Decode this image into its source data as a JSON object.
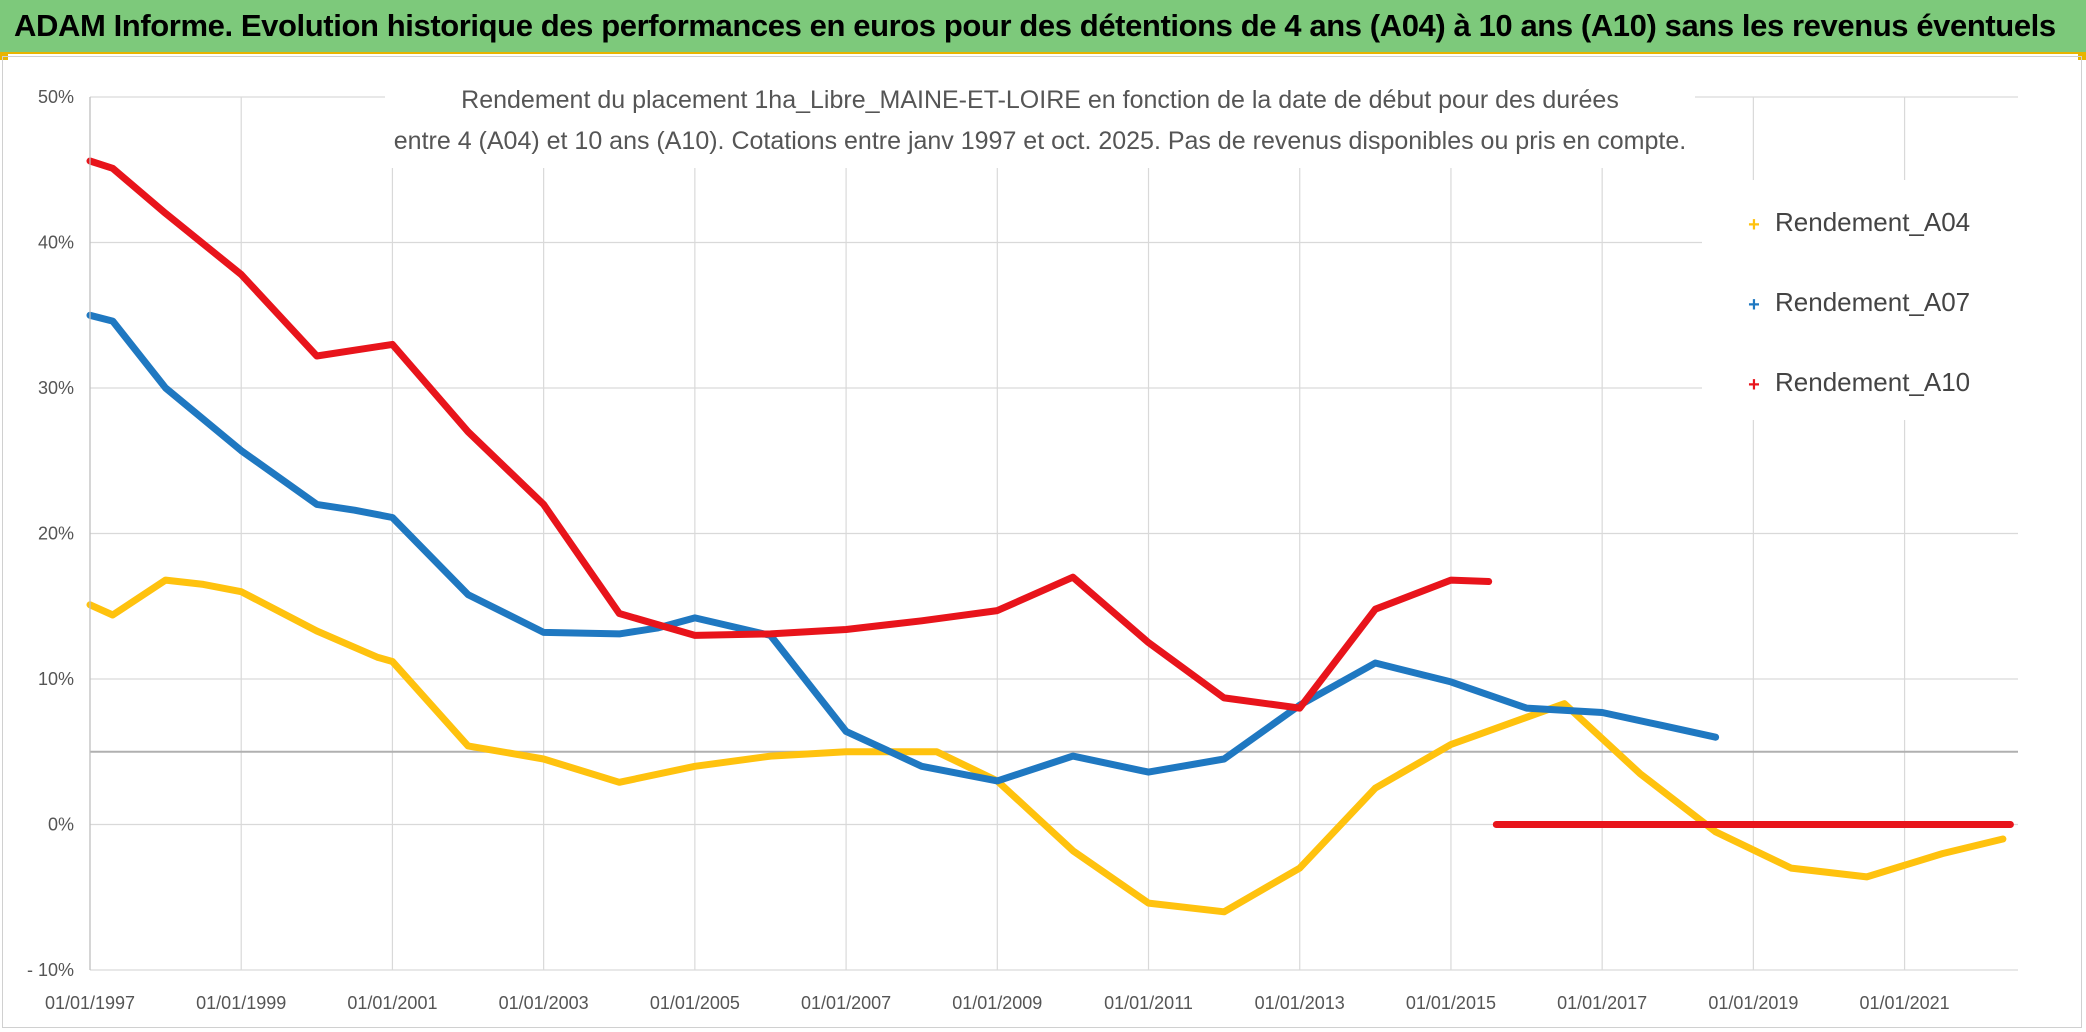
{
  "banner": {
    "title": "ADAM Informe. Evolution historique des performances en euros pour des détentions de 4 ans (A04) à 10 ans (A10) sans les revenus éventuels"
  },
  "colors": {
    "banner_bg": "#7dc97b",
    "accent_border": "#e8b400",
    "A04": "#ffc20e",
    "A07": "#1f78c1",
    "A10": "#e8141b",
    "grid": "#d9d9d9",
    "reference_line": "#b0b0b0"
  },
  "chart_data": {
    "type": "line",
    "title_lines": [
      "Rendement du placement 1ha_Libre_MAINE-ET-LOIRE en fonction de la date de début pour des durées",
      "entre 4 (A04) et 10 ans (A10). Cotations entre janv 1997 et oct. 2025. Pas de revenus disponibles ou pris en compte."
    ],
    "xlabel": "",
    "ylabel": "",
    "xlim": [
      1997.0,
      2022.5
    ],
    "ylim": [
      -10,
      50
    ],
    "grid": true,
    "legend_position": "top-right",
    "x_ticks": [
      {
        "x": 1997,
        "label": "01/01/1997"
      },
      {
        "x": 1999,
        "label": "01/01/1999"
      },
      {
        "x": 2001,
        "label": "01/01/2001"
      },
      {
        "x": 2003,
        "label": "01/01/2003"
      },
      {
        "x": 2005,
        "label": "01/01/2005"
      },
      {
        "x": 2007,
        "label": "01/01/2007"
      },
      {
        "x": 2009,
        "label": "01/01/2009"
      },
      {
        "x": 2011,
        "label": "01/01/2011"
      },
      {
        "x": 2013,
        "label": "01/01/2013"
      },
      {
        "x": 2015,
        "label": "01/01/2015"
      },
      {
        "x": 2017,
        "label": "01/01/2017"
      },
      {
        "x": 2019,
        "label": "01/01/2019"
      },
      {
        "x": 2021,
        "label": "01/01/2021"
      }
    ],
    "y_ticks": [
      {
        "y": 50,
        "label": "50%"
      },
      {
        "y": 40,
        "label": "40%"
      },
      {
        "y": 30,
        "label": "30%"
      },
      {
        "y": 20,
        "label": "20%"
      },
      {
        "y": 10,
        "label": "10%"
      },
      {
        "y": 0,
        "label": "0%"
      },
      {
        "y": -10,
        "label": "- 10%"
      }
    ],
    "x_gridlines": [
      1997,
      1999,
      2001,
      2003,
      2005,
      2007,
      2009,
      2011,
      2013,
      2015,
      2017,
      2019,
      2021
    ],
    "reference_line_y": 5,
    "series": [
      {
        "name": "Rendement_A04",
        "color_key": "A04",
        "points": [
          [
            1997.0,
            15.1
          ],
          [
            1997.3,
            14.4
          ],
          [
            1998.0,
            16.8
          ],
          [
            1998.5,
            16.5
          ],
          [
            1999.0,
            16.0
          ],
          [
            2000.0,
            13.3
          ],
          [
            2000.8,
            11.5
          ],
          [
            2001.0,
            11.2
          ],
          [
            2002.0,
            5.4
          ],
          [
            2003.0,
            4.5
          ],
          [
            2004.0,
            2.9
          ],
          [
            2005.0,
            4.0
          ],
          [
            2006.0,
            4.7
          ],
          [
            2007.0,
            5.0
          ],
          [
            2007.8,
            5.0
          ],
          [
            2008.2,
            5.0
          ],
          [
            2009.0,
            3.0
          ],
          [
            2010.0,
            -1.8
          ],
          [
            2011.0,
            -5.4
          ],
          [
            2012.0,
            -6.0
          ],
          [
            2013.0,
            -3.0
          ],
          [
            2014.0,
            2.5
          ],
          [
            2015.0,
            5.5
          ],
          [
            2016.5,
            8.3
          ],
          [
            2017.5,
            3.5
          ],
          [
            2018.5,
            -0.5
          ],
          [
            2019.5,
            -3.0
          ],
          [
            2020.5,
            -3.6
          ],
          [
            2021.5,
            -2.0
          ],
          [
            2022.3,
            -1.0
          ]
        ]
      },
      {
        "name": "Rendement_A07",
        "color_key": "A07",
        "points": [
          [
            1997.0,
            35.0
          ],
          [
            1997.3,
            34.6
          ],
          [
            1998.0,
            30.0
          ],
          [
            1999.0,
            25.7
          ],
          [
            2000.0,
            22.0
          ],
          [
            2000.5,
            21.6
          ],
          [
            2001.0,
            21.1
          ],
          [
            2002.0,
            15.8
          ],
          [
            2003.0,
            13.2
          ],
          [
            2004.0,
            13.1
          ],
          [
            2004.5,
            13.5
          ],
          [
            2005.0,
            14.2
          ],
          [
            2006.0,
            13.0
          ],
          [
            2007.0,
            6.4
          ],
          [
            2008.0,
            4.0
          ],
          [
            2009.0,
            3.0
          ],
          [
            2010.0,
            4.7
          ],
          [
            2011.0,
            3.6
          ],
          [
            2012.0,
            4.5
          ],
          [
            2013.0,
            8.2
          ],
          [
            2014.0,
            11.1
          ],
          [
            2015.0,
            9.8
          ],
          [
            2016.0,
            8.0
          ],
          [
            2017.0,
            7.7
          ],
          [
            2017.8,
            6.8
          ],
          [
            2018.5,
            6.0
          ]
        ]
      },
      {
        "name": "Rendement_A10",
        "color_key": "A10",
        "points": [
          [
            1997.0,
            45.6
          ],
          [
            1997.3,
            45.1
          ],
          [
            1998.0,
            42.0
          ],
          [
            1999.0,
            37.8
          ],
          [
            2000.0,
            32.2
          ],
          [
            2000.5,
            32.6
          ],
          [
            2001.0,
            33.0
          ],
          [
            2002.0,
            27.0
          ],
          [
            2003.0,
            22.0
          ],
          [
            2004.0,
            14.5
          ],
          [
            2005.0,
            13.0
          ],
          [
            2006.0,
            13.1
          ],
          [
            2007.0,
            13.4
          ],
          [
            2008.0,
            14.0
          ],
          [
            2009.0,
            14.7
          ],
          [
            2010.0,
            17.0
          ],
          [
            2011.0,
            12.5
          ],
          [
            2012.0,
            8.7
          ],
          [
            2013.0,
            8.0
          ],
          [
            2014.0,
            14.8
          ],
          [
            2015.0,
            16.8
          ],
          [
            2015.5,
            16.7
          ]
        ],
        "extra_segment": [
          [
            2015.6,
            0.0
          ],
          [
            2022.4,
            0.0
          ]
        ]
      }
    ]
  }
}
